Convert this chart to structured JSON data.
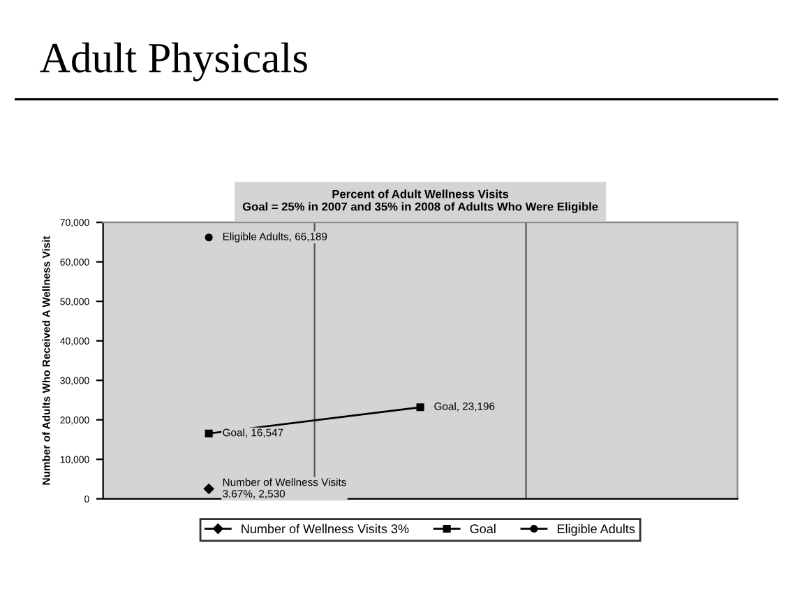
{
  "chart_data": {
    "type": "line",
    "title": "Adult Physicals",
    "subtitle": "Percent of Adult Wellness Visits\nGoal = 25% in 2007 and 35% in 2008 of Adults Who Were Eligible",
    "ylabel": "Number of Adults Who Received A Wellness Visit",
    "categories": [
      null,
      null,
      null
    ],
    "series": [
      {
        "name": "Number of Wellness Visits 3%",
        "color": "#000000",
        "marker": "diamond",
        "values": [
          2530,
          null,
          null
        ],
        "value_labels": [
          "Number of Wellness Visits\n3.67%, 2,530",
          null,
          null
        ]
      },
      {
        "name": "Goal",
        "color": "#000000",
        "marker": "square",
        "values": [
          16547,
          23196,
          null
        ],
        "value_labels": [
          "Goal, 16,547",
          "Goal, 23,196",
          null
        ]
      },
      {
        "name": "Eligible Adults",
        "color": "#000000",
        "marker": "circle",
        "values": [
          66189,
          null,
          null
        ],
        "value_labels": [
          "Eligible Adults, 66,189",
          null,
          null
        ]
      }
    ],
    "ylim": [
      0,
      70000
    ],
    "yticks": [
      0,
      {
        "value": 10000,
        "label": "10,000"
      },
      {
        "value": 20000,
        "label": "20,000"
      },
      {
        "value": 30000,
        "label": "30,000"
      },
      {
        "value": 40000,
        "label": "40,000"
      },
      {
        "value": 50000,
        "label": "50,000"
      },
      {
        "value": 60000,
        "label": "60,000"
      },
      {
        "value": 70000,
        "label": "70,000"
      }
    ],
    "grid": false,
    "legend": "bottom"
  }
}
